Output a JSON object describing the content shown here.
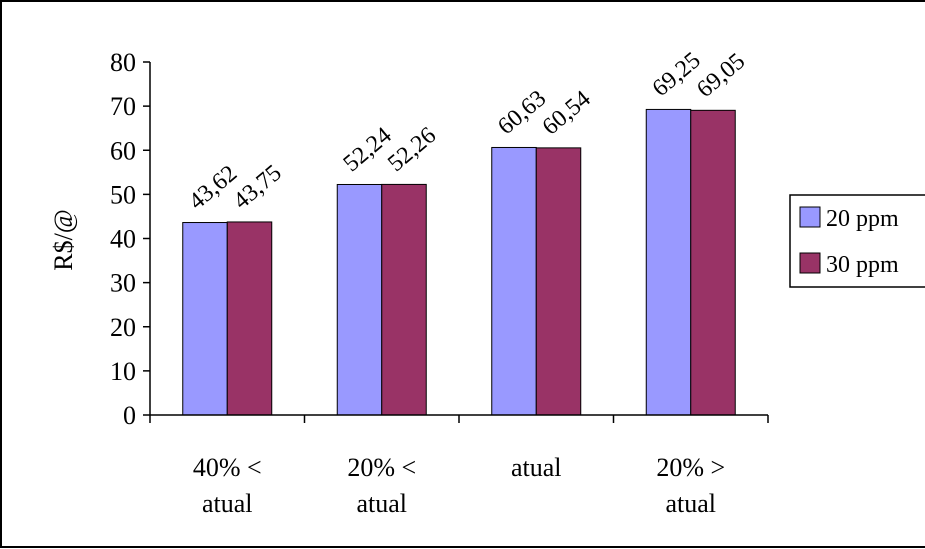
{
  "chart_data": {
    "type": "bar",
    "title": "",
    "xlabel": "",
    "ylabel": "R$/@",
    "ylim": [
      0,
      80
    ],
    "yticks": [
      0,
      10,
      20,
      30,
      40,
      50,
      60,
      70,
      80
    ],
    "grid": false,
    "legend_position": "right",
    "categories": [
      [
        "40% <",
        "atual"
      ],
      [
        "20% <",
        "atual"
      ],
      [
        "atual"
      ],
      [
        "20% >",
        "atual"
      ]
    ],
    "series": [
      {
        "name": "20 ppm",
        "color": "#9999ff",
        "values": [
          43.62,
          52.24,
          60.63,
          69.25
        ],
        "labels": [
          "43,62",
          "52,24",
          "60,63",
          "69,25"
        ]
      },
      {
        "name": "30 ppm",
        "color": "#993366",
        "values": [
          43.75,
          52.26,
          60.54,
          69.05
        ],
        "labels": [
          "43,75",
          "52,26",
          "60,54",
          "69,05"
        ]
      }
    ]
  }
}
